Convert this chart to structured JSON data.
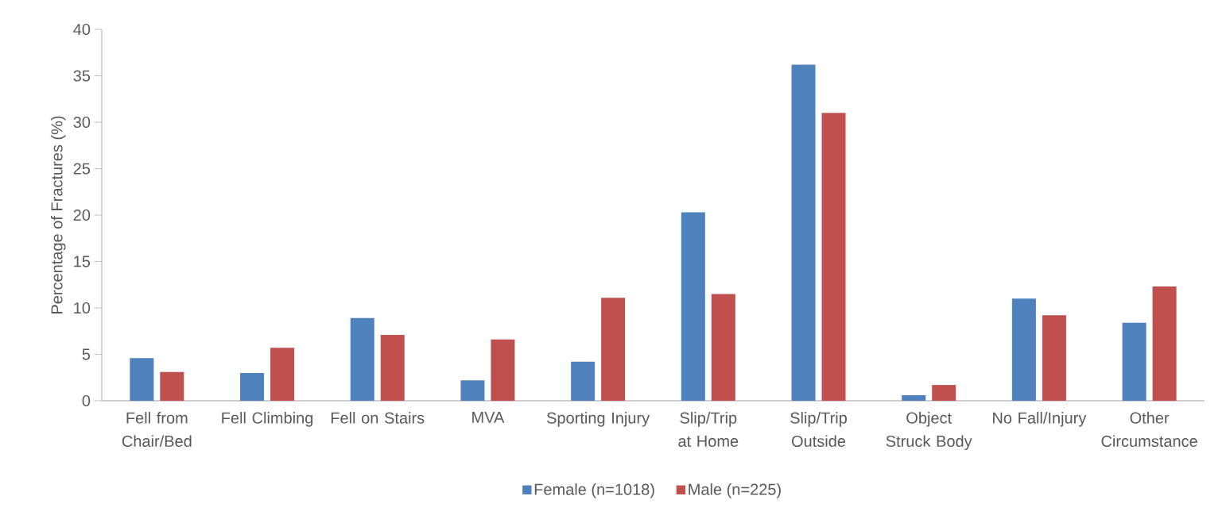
{
  "chart_data": {
    "type": "bar",
    "ylabel": "Percentage of Fractures (%)",
    "categories": [
      "Fell from Chair/Bed",
      "Fell Climbing",
      "Fell on Stairs",
      "MVA",
      "Sporting Injury",
      "Slip/Trip at Home",
      "Slip/Trip Outside",
      "Object Struck Body",
      "No Fall/Injury",
      "Other Circumstance"
    ],
    "series": [
      {
        "name": "Female (n=1018)",
        "color": "#4f81bd",
        "values": [
          4.6,
          3.0,
          8.9,
          2.2,
          4.2,
          20.3,
          36.2,
          0.6,
          11.0,
          8.4
        ]
      },
      {
        "name": "Male (n=225)",
        "color": "#c0504d",
        "values": [
          3.1,
          5.7,
          7.1,
          6.6,
          11.1,
          11.5,
          31.0,
          1.7,
          9.2,
          12.3
        ]
      }
    ],
    "ylim": [
      0,
      40
    ],
    "yticks": [
      0,
      5,
      10,
      15,
      20,
      25,
      30,
      35,
      40
    ],
    "grid": false,
    "legend": "bottom"
  }
}
